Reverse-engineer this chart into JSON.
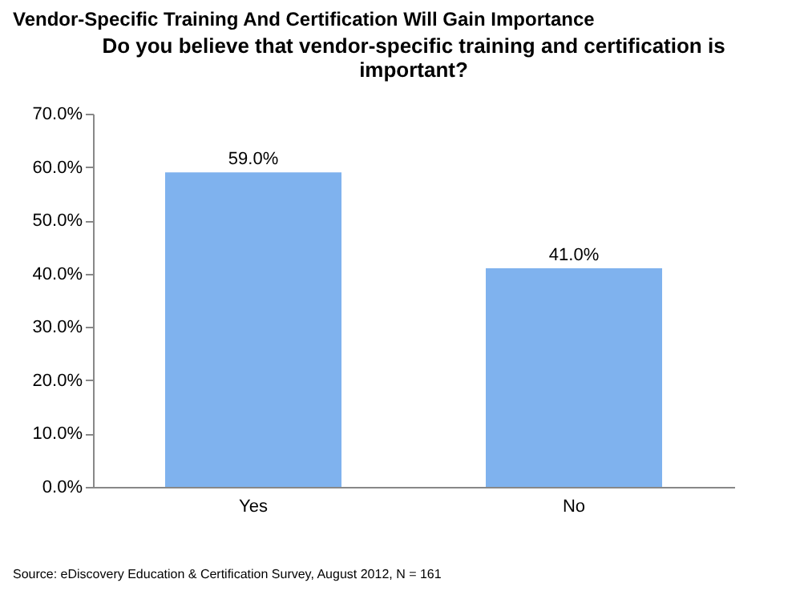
{
  "chart_data": {
    "type": "bar",
    "title": "Vendor-Specific Training And Certification Will Gain Importance",
    "subtitle": "Do you believe that vendor-specific training and certification is important?",
    "categories": [
      "Yes",
      "No"
    ],
    "values": [
      59.0,
      41.0
    ],
    "value_labels": [
      "59.0%",
      "41.0%"
    ],
    "color": "#7fb2ee",
    "ylim": [
      0,
      70
    ],
    "yticks": [
      {
        "value": 0,
        "label": "0.0%"
      },
      {
        "value": 10,
        "label": "10.0%"
      },
      {
        "value": 20,
        "label": "20.0%"
      },
      {
        "value": 30,
        "label": "30.0%"
      },
      {
        "value": 40,
        "label": "40.0%"
      },
      {
        "value": 50,
        "label": "50.0%"
      },
      {
        "value": 60,
        "label": "60.0%"
      },
      {
        "value": 70,
        "label": "70.0%"
      }
    ],
    "grid": false,
    "annotations": [
      "Source: eDiscovery Education & Certification Survey, August 2012, N = 161"
    ]
  }
}
